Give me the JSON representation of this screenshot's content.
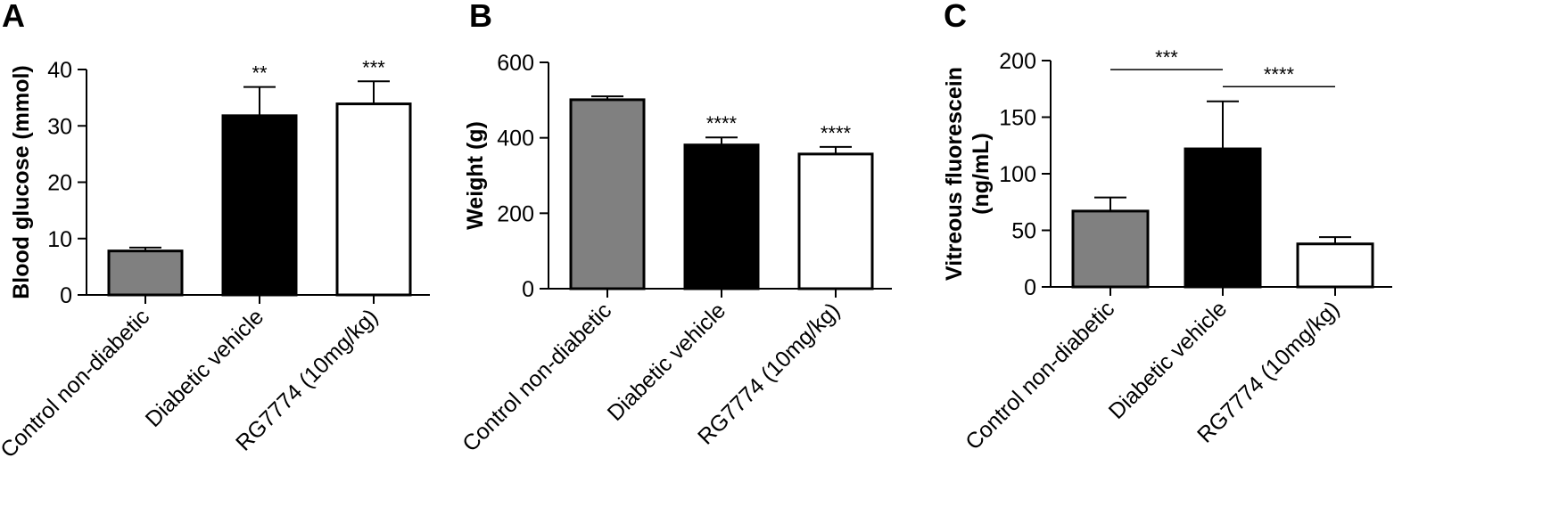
{
  "figure": {
    "panels": [
      "A",
      "B",
      "C"
    ]
  },
  "chart_data": [
    {
      "type": "bar",
      "panel_label": "A",
      "ylabel": "Blood glucose (mmol)",
      "ylim": [
        0,
        40
      ],
      "yticks": [
        0,
        10,
        20,
        30,
        40
      ],
      "categories": [
        "Control non-diabetic",
        "Diabetic vehicle",
        "RG7774 (10mg/kg)"
      ],
      "values": [
        7.8,
        31.8,
        33.9
      ],
      "errors": [
        0.6,
        5.1,
        4.0
      ],
      "bar_colors": [
        "#808080",
        "#000000",
        "#ffffff"
      ],
      "significance": [
        "",
        "**",
        "***"
      ],
      "comparisons": []
    },
    {
      "type": "bar",
      "panel_label": "B",
      "ylabel": "Weight (g)",
      "ylim": [
        0,
        600
      ],
      "yticks": [
        0,
        200,
        400,
        600
      ],
      "categories": [
        "Control non-diabetic",
        "Diabetic vehicle",
        "RG7774 (10mg/kg)"
      ],
      "values": [
        501,
        381,
        357
      ],
      "errors": [
        9,
        20,
        19
      ],
      "bar_colors": [
        "#808080",
        "#000000",
        "#ffffff"
      ],
      "significance": [
        "",
        "****",
        "****"
      ],
      "comparisons": []
    },
    {
      "type": "bar",
      "panel_label": "C",
      "ylabel": "Vitreous fluorescein\n(ng/mL)",
      "ylim": [
        0,
        200
      ],
      "yticks": [
        0,
        50,
        100,
        150,
        200
      ],
      "categories": [
        "Control non-diabetic",
        "Diabetic vehicle",
        "RG7774 (10mg/kg)"
      ],
      "values": [
        67,
        122,
        38
      ],
      "errors": [
        12,
        42,
        6
      ],
      "bar_colors": [
        "#808080",
        "#000000",
        "#ffffff"
      ],
      "significance": [
        "",
        "",
        ""
      ],
      "comparisons": [
        {
          "from": 0,
          "to": 1,
          "label": "***",
          "y": 192
        },
        {
          "from": 1,
          "to": 2,
          "label": "****",
          "y": 177
        }
      ]
    }
  ]
}
